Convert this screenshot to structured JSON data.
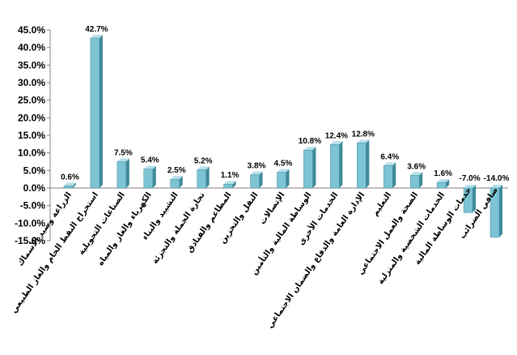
{
  "chart_data": {
    "type": "bar",
    "categories": [
      "الزراعة وصيد الأسماك",
      "استخراج النفط الخام والغاز الطبيعي",
      "الصناعات التحويلية",
      "الكهرباء والغاز والمياه",
      "التشييد والبناء",
      "تجارة الجملة والتجزئة",
      "المطاعم والفنادق",
      "النقل والتخزين",
      "الإتصالات",
      "الوساطة المالية والتأمين",
      "الخدمات الأخرى",
      "الإدارة العامة والدفاع والضمان الاجتماعي",
      "التعليم",
      "الصحة والعمل الاجتماعي",
      "الخدمات الشخصية والمنزلية",
      "خدمات الوساطة المالية",
      "صافي الضرائب"
    ],
    "values": [
      0.6,
      42.7,
      7.5,
      5.4,
      2.5,
      5.2,
      1.1,
      3.8,
      4.5,
      10.8,
      12.4,
      12.8,
      6.4,
      3.6,
      1.6,
      -7.0,
      -14.0
    ],
    "data_labels": [
      "0.6%",
      "42.7%",
      "7.5%",
      "5.4%",
      "2.5%",
      "5.2%",
      "1.1%",
      "3.8%",
      "4.5%",
      "10.8%",
      "12.4%",
      "12.8%",
      "6.4%",
      "3.6%",
      "1.6%",
      "-7.0%",
      "-14.0%"
    ],
    "y_ticks": [
      45,
      40,
      35,
      30,
      25,
      20,
      15,
      10,
      5,
      0,
      -5,
      -10,
      -15
    ],
    "y_tick_labels": [
      "45.0%",
      "40.0%",
      "35.0%",
      "30.0%",
      "25.0%",
      "20.0%",
      "15.0%",
      "10.0%",
      "5.0%",
      "0.0%",
      "-5.0%",
      "-10.0%",
      "-15.0%"
    ],
    "ylim": [
      -15,
      45
    ],
    "title": "",
    "xlabel": "",
    "ylabel": "",
    "grid": false,
    "legend": "none",
    "colors": {
      "bar_front": "#7cc4d4",
      "bar_side": "#3f8a9c",
      "bar_top": "#b6e0ea",
      "axis": "#808080"
    }
  }
}
